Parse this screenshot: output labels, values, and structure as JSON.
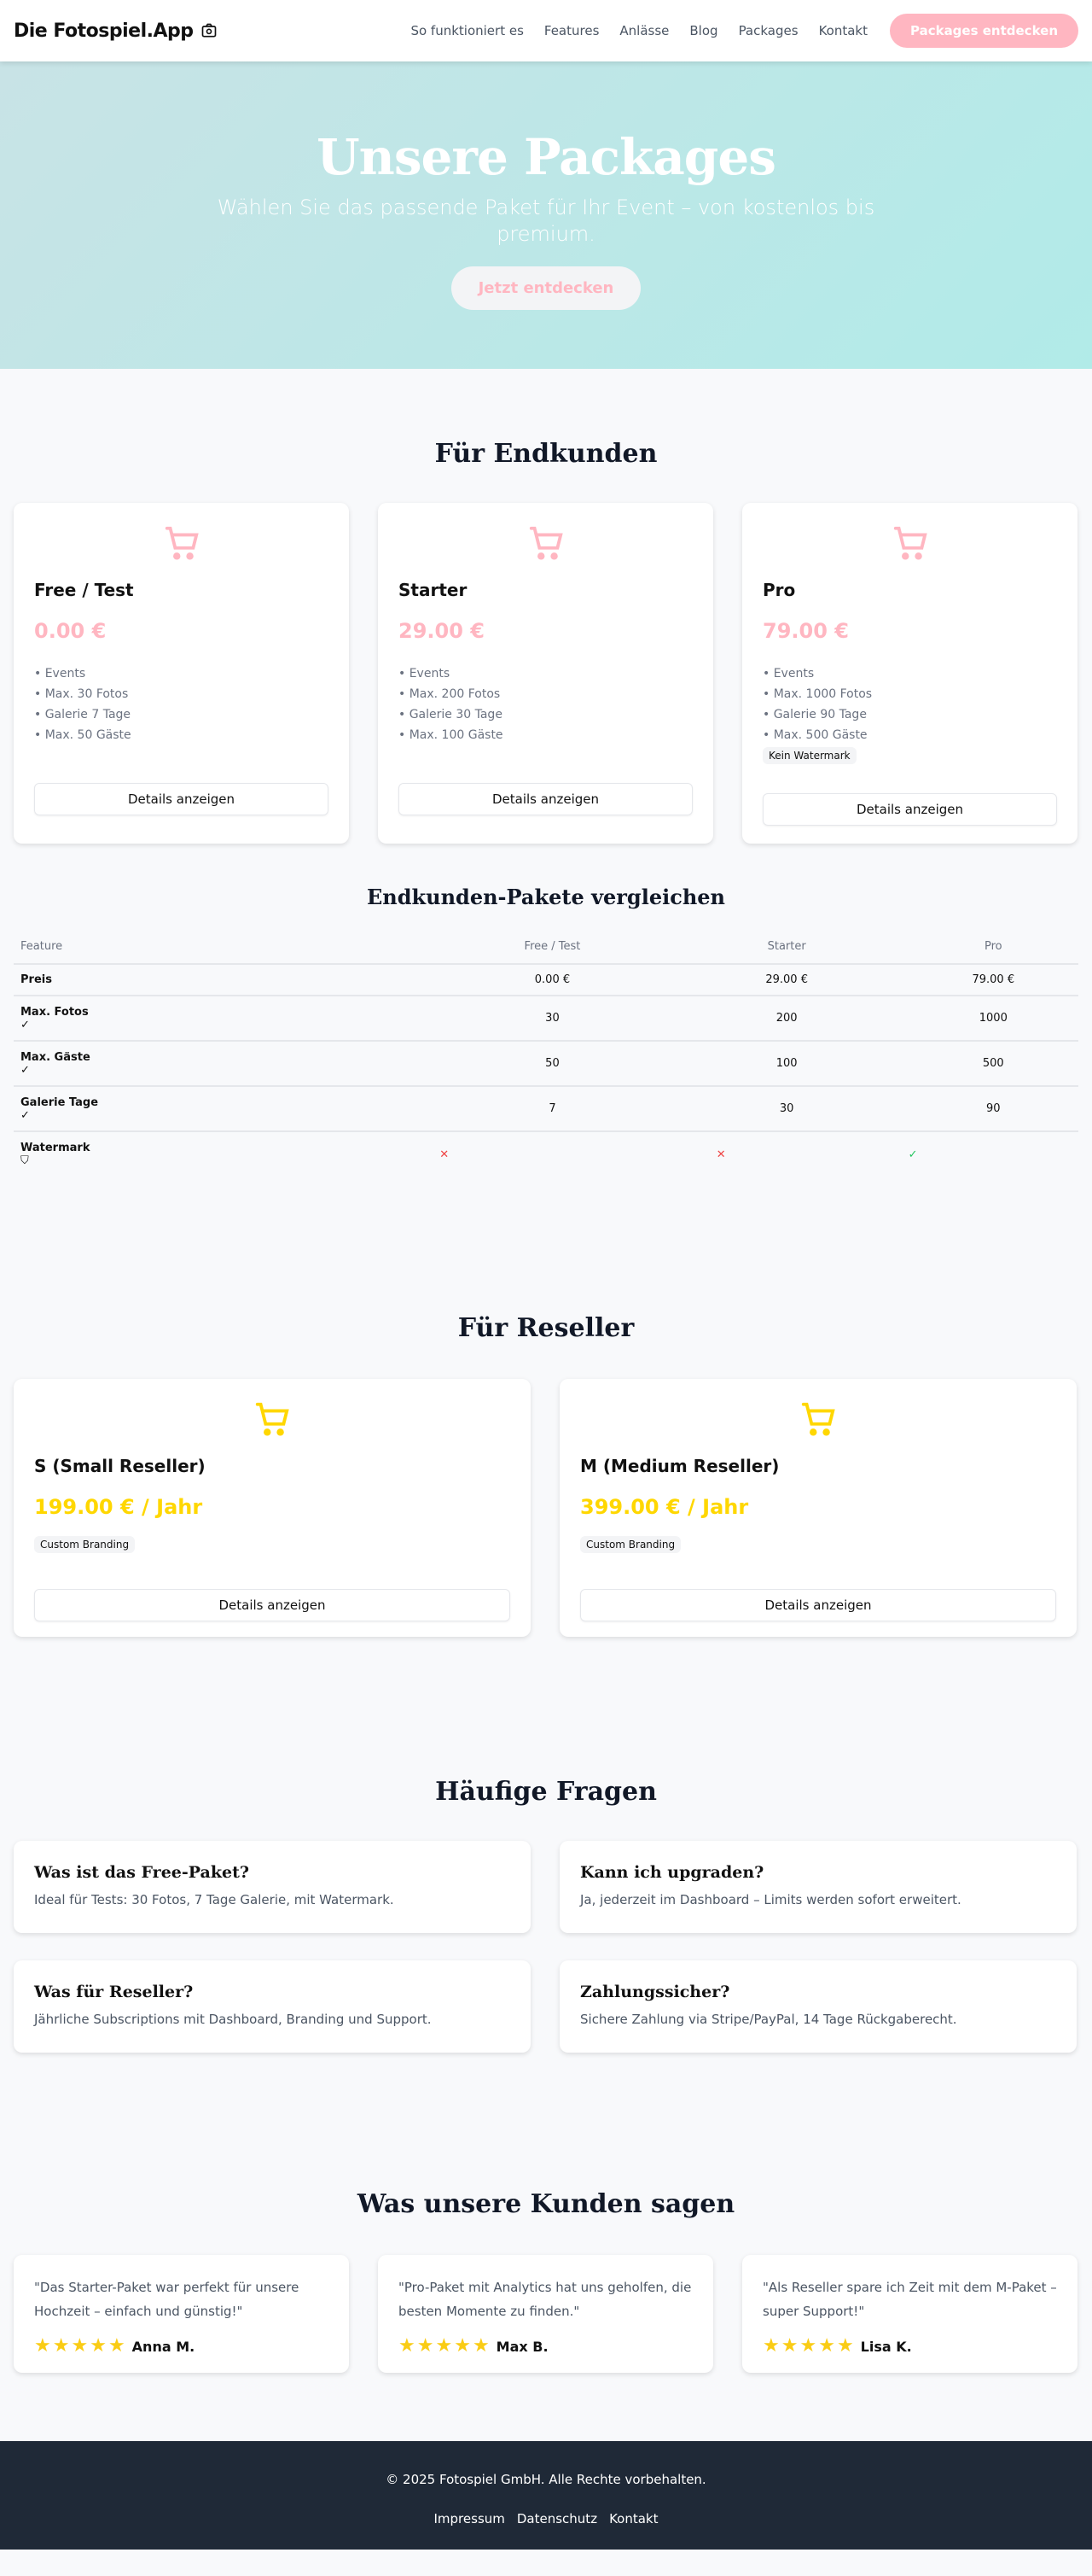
{
  "header": {
    "logo": "Die Fotospiel.App",
    "nav": [
      "So funktioniert es",
      "Features",
      "Anlässe",
      "Blog",
      "Packages",
      "Kontakt"
    ],
    "cta": "Packages entdecken"
  },
  "hero": {
    "title": "Unsere Packages",
    "subtitle": "Wählen Sie das passende Paket für Ihr Event – von kostenlos bis premium.",
    "cta": "Jetzt entdecken"
  },
  "colors": {
    "pink": "#ffb6c1",
    "yellow": "#ffd700",
    "footer": "#1f2937"
  },
  "endkunden": {
    "title": "Für Endkunden",
    "details_label": "Details anzeigen",
    "packages": [
      {
        "name": "Free / Test",
        "price": "0.00 €",
        "features": [
          "• Events",
          "• Max. 30 Fotos",
          "• Galerie 7 Tage",
          "• Max. 50 Gäste"
        ]
      },
      {
        "name": "Starter",
        "price": "29.00 €",
        "features": [
          "• Events",
          "• Max. 200 Fotos",
          "• Galerie 30 Tage",
          "• Max. 100 Gäste"
        ]
      },
      {
        "name": "Pro",
        "price": "79.00 €",
        "features": [
          "• Events",
          "• Max. 1000 Fotos",
          "• Galerie 90 Tage",
          "• Max. 500 Gäste"
        ],
        "badge": "Kein Watermark"
      }
    ]
  },
  "compare": {
    "title": "Endkunden-Pakete vergleichen",
    "headers": [
      "Feature",
      "Free / Test",
      "Starter",
      "Pro"
    ],
    "rows": [
      {
        "label": "Preis",
        "values": [
          "0.00 €",
          "29.00 €",
          "79.00 €"
        ]
      },
      {
        "label": "Max. Fotos",
        "icon": "✓",
        "values": [
          "30",
          "200",
          "1000"
        ]
      },
      {
        "label": "Max. Gäste",
        "icon": "✓",
        "values": [
          "50",
          "100",
          "500"
        ]
      },
      {
        "label": "Galerie Tage",
        "icon": "✓",
        "values": [
          "7",
          "30",
          "90"
        ]
      },
      {
        "label": "Watermark",
        "values": [
          "✕",
          "✕",
          "✓"
        ]
      }
    ]
  },
  "reseller": {
    "title": "Für Reseller",
    "packages": [
      {
        "name": "S (Small Reseller)",
        "price": "199.00 € / Jahr",
        "badge": "Custom Branding"
      },
      {
        "name": "M (Medium Reseller)",
        "price": "399.00 € / Jahr",
        "badge": "Custom Branding"
      }
    ]
  },
  "faq": {
    "title": "Häufige Fragen",
    "items": [
      {
        "q": "Was ist das Free-Paket?",
        "a": "Ideal für Tests: 30 Fotos, 7 Tage Galerie, mit Watermark."
      },
      {
        "q": "Kann ich upgraden?",
        "a": "Ja, jederzeit im Dashboard – Limits werden sofort erweitert."
      },
      {
        "q": "Was für Reseller?",
        "a": "Jährliche Subscriptions mit Dashboard, Branding und Support."
      },
      {
        "q": "Zahlungssicher?",
        "a": "Sichere Zahlung via Stripe/PayPal, 14 Tage Rückgaberecht."
      }
    ]
  },
  "testimonials": {
    "title": "Was unsere Kunden sagen",
    "items": [
      {
        "text": "\"Das Starter-Paket war perfekt für unsere Hochzeit – einfach und günstig!\"",
        "name": "Anna M.",
        "rating": 5
      },
      {
        "text": "\"Pro-Paket mit Analytics hat uns geholfen, die besten Momente zu finden.\"",
        "name": "Max B.",
        "rating": 5
      },
      {
        "text": "\"Als Reseller spare ich Zeit mit dem M-Paket – super Support!\"",
        "name": "Lisa K.",
        "rating": 5
      }
    ]
  },
  "footer": {
    "copyright": "© 2025 Fotospiel GmbH. Alle Rechte vorbehalten.",
    "links": [
      "Impressum",
      "Datenschutz",
      "Kontakt"
    ]
  }
}
